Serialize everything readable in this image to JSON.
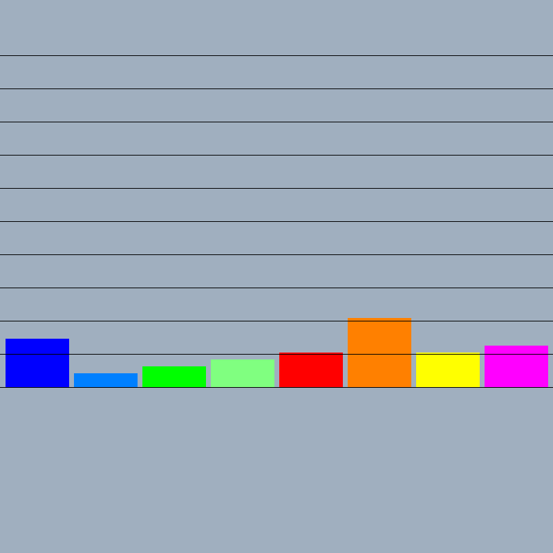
{
  "chart_data": {
    "type": "bar",
    "categories": [
      null,
      null,
      null,
      null,
      null,
      null,
      null,
      null
    ],
    "values": [
      70,
      20,
      30,
      40,
      50,
      100,
      50,
      60
    ],
    "colors": [
      "#0000ff",
      "#0080ff",
      "#00ff00",
      "#80ff80",
      "#ff0000",
      "#ff8000",
      "#ffff00",
      "#ff00ff"
    ],
    "ylim": [
      0,
      480
    ],
    "yticks": [
      0,
      48,
      96,
      144,
      192,
      240,
      288,
      336,
      384,
      432,
      480
    ],
    "grid": true
  }
}
